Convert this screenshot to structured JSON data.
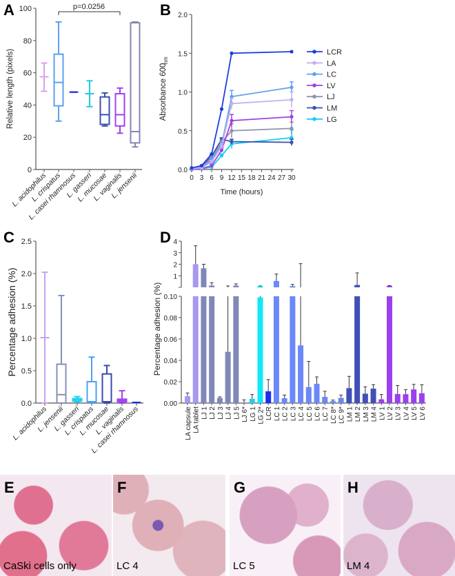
{
  "chart_data": [
    {
      "panel": "A",
      "type": "box",
      "ylabel": "Relative length (pixels)",
      "ylim": [
        0,
        100
      ],
      "yticks": [
        "0",
        "20",
        "40",
        "60",
        "80",
        "100"
      ],
      "categories": [
        "L. acidophilus",
        "L. crispatus",
        "L. casei rhamnosus",
        "L. gasseri",
        "L. mucosae",
        "L. vaginalis",
        "L. jensenii"
      ],
      "colors": [
        "#d9a0f0",
        "#5aa0f0",
        "#1a2fe0",
        "#20c8e0",
        "#3a4fb0",
        "#a040f0",
        "#8484b4"
      ],
      "boxes": [
        {
          "min": 48.5,
          "q1": 57.5,
          "median": 57.5,
          "q3": 57.5,
          "max": 66
        },
        {
          "min": 30,
          "q1": 39.5,
          "median": 54,
          "q3": 71.5,
          "max": 91.5
        },
        {
          "min": 48,
          "q1": 48,
          "median": 48,
          "q3": 48,
          "max": 48
        },
        {
          "min": 39,
          "q1": 47,
          "median": 47,
          "q3": 47,
          "max": 55
        },
        {
          "min": 27,
          "q1": 28,
          "median": 34,
          "q3": 45,
          "max": 47.5
        },
        {
          "min": 22.5,
          "q1": 27,
          "median": 34,
          "q3": 47,
          "max": 50.5
        },
        {
          "min": 14,
          "q1": 16.5,
          "median": 23.5,
          "q3": 91,
          "max": 91.5
        }
      ],
      "annotation": {
        "text": "p=0.0256",
        "from": "L. crispatus",
        "to": "L. vaginalis"
      }
    },
    {
      "panel": "B",
      "type": "line",
      "xlabel": "Time (hours)",
      "ylabel": "Absorbance 600",
      "ylabel_sub": "nm",
      "xlim": [
        0,
        30
      ],
      "ylim": [
        0,
        2.0
      ],
      "xticks": [
        "0",
        "3",
        "6",
        "9",
        "12",
        "15",
        "18",
        "21",
        "24",
        "27",
        "30"
      ],
      "yticks": [
        "0.0",
        "0.5",
        "1.0",
        "1.5",
        "2.0"
      ],
      "x": [
        0,
        3,
        6,
        9,
        12,
        30
      ],
      "legend_position": "right",
      "series": [
        {
          "name": "LCR",
          "color": "#1a3fe0",
          "values": [
            0.02,
            0.05,
            0.2,
            0.78,
            1.5,
            1.52
          ],
          "err": [
            0,
            0,
            0,
            0,
            0.01,
            0.01
          ]
        },
        {
          "name": "LA",
          "color": "#c0b0f0",
          "values": [
            0.01,
            0.02,
            0.1,
            0.3,
            0.85,
            0.9
          ],
          "err": [
            0,
            0,
            0.02,
            0.03,
            0.07,
            0.1
          ]
        },
        {
          "name": "LC",
          "color": "#60a0f0",
          "values": [
            0.01,
            0.02,
            0.12,
            0.32,
            0.94,
            1.06
          ],
          "err": [
            0,
            0,
            0.02,
            0.03,
            0.08,
            0.07
          ]
        },
        {
          "name": "LV",
          "color": "#a040e0",
          "values": [
            0,
            0.01,
            0.05,
            0.25,
            0.63,
            0.68
          ],
          "err": [
            0,
            0,
            0.02,
            0.03,
            0.08,
            0.08
          ]
        },
        {
          "name": "LJ",
          "color": "#9090b0",
          "values": [
            0.01,
            0.03,
            0.15,
            0.35,
            0.5,
            0.53
          ],
          "err": [
            0,
            0,
            0.02,
            0.03,
            0.09,
            0.08
          ]
        },
        {
          "name": "LM",
          "color": "#3a50b0",
          "values": [
            0.01,
            0.03,
            0.17,
            0.39,
            0.36,
            0.35
          ],
          "err": [
            0,
            0,
            0.02,
            0.02,
            0.03,
            0.04
          ]
        },
        {
          "name": "LG",
          "color": "#10d0f0",
          "values": [
            0,
            0.01,
            0.03,
            0.18,
            0.33,
            0.41
          ],
          "err": [
            0,
            0,
            0.01,
            0.02,
            0.06,
            0.1
          ]
        }
      ]
    },
    {
      "panel": "C",
      "type": "box",
      "ylabel": "Percentage adhesion (%)",
      "ylim": [
        0,
        2.5
      ],
      "yticks": [
        "0.0",
        "0.5",
        "1.0",
        "1.5",
        "2.0",
        "2.5"
      ],
      "categories": [
        "L. acidophilus",
        "L. jensenii",
        "L. gasseri",
        "L. crispatus",
        "L. mucosae",
        "L. vaginalis",
        "L. casei rhamnosus"
      ],
      "colors": [
        "#c8a0f0",
        "#8490b8",
        "#20d0f0",
        "#4aa0f0",
        "#3a48b0",
        "#a040f0",
        "#1a2fe0"
      ],
      "boxes": [
        {
          "min": 0,
          "q1": 1.01,
          "median": 1.01,
          "q3": 1.01,
          "max": 2.02
        },
        {
          "min": 0,
          "q1": 0,
          "median": 0.13,
          "q3": 0.6,
          "max": 1.66
        },
        {
          "min": 0.02,
          "q1": 0.03,
          "median": 0.05,
          "q3": 0.07,
          "max": 0.1
        },
        {
          "min": 0,
          "q1": 0.02,
          "median": 0.02,
          "q3": 0.33,
          "max": 0.71
        },
        {
          "min": 0,
          "q1": 0.02,
          "median": 0.02,
          "q3": 0.45,
          "max": 0.58
        },
        {
          "min": 0,
          "q1": 0.02,
          "median": 0.04,
          "q3": 0.06,
          "max": 0.19
        },
        {
          "min": 0.01,
          "q1": 0.01,
          "median": 0.01,
          "q3": 0.01,
          "max": 0.01
        }
      ]
    },
    {
      "panel": "D",
      "type": "bar",
      "ylabel": "Percentage adhesion (%)",
      "axis_break": true,
      "lower_ylim": [
        0,
        0.1
      ],
      "upper_ylim": [
        0,
        4
      ],
      "lower_yticks": [
        "0.00",
        "0.02",
        "0.04",
        "0.06",
        "0.08",
        "0.10"
      ],
      "upper_yticks": [
        "1",
        "2",
        "3",
        "4"
      ],
      "categories": [
        "LA capsule",
        "LA tablet",
        "LJ 1",
        "LJ 2",
        "LJ 3",
        "LJ 4",
        "LJ 5",
        "LJ 6*",
        "LG 1",
        "LG 2*",
        "LCR",
        "LC 1",
        "LC 2",
        "LC 3",
        "LC 4",
        "LC 5",
        "LC 6",
        "LC 7",
        "LC 8*",
        "LC 9*",
        "LM 1",
        "LM 2",
        "LM 3",
        "LM 4",
        "LV 1",
        "LV 2",
        "LV 3",
        "LV 4",
        "LV 5",
        "LV 6"
      ],
      "values": [
        0.0065,
        2.0,
        1.65,
        0.15,
        0.0048,
        0.048,
        0.15,
        0.0005,
        0.004,
        0.099,
        0.011,
        0.55,
        0.0045,
        0.1,
        0.054,
        0.015,
        0.018,
        0.0058,
        0.0018,
        0.0048,
        0.014,
        0.2,
        0.0088,
        0.0135,
        0.0035,
        0.12,
        0.0085,
        0.0083,
        0.0128,
        0.0092
      ],
      "err_top": [
        0.0095,
        3.6,
        2.0,
        0.4,
        0.0058,
        0.12,
        0.3,
        0.003,
        0.008,
        0.12,
        0.022,
        1.15,
        0.0075,
        0.25,
        2.05,
        0.039,
        0.0245,
        0.011,
        0.0028,
        0.0075,
        0.025,
        1.25,
        0.0152,
        0.0172,
        0.008,
        0.15,
        0.0165,
        0.0125,
        0.0175,
        0.0171
      ],
      "colors": [
        "#a898f0",
        "#a898f0",
        "#7f88b8",
        "#7f88b8",
        "#7f88b8",
        "#7f88b8",
        "#7f88b8",
        "#7f88b8",
        "#20d0f0",
        "#10e8f8",
        "#1a30f0",
        "#6b88f8",
        "#6b88f8",
        "#6b88f8",
        "#6b88f8",
        "#6b88f8",
        "#6b88f8",
        "#6b88f8",
        "#6b88f8",
        "#6b88f8",
        "#4050b8",
        "#4050b8",
        "#4050b8",
        "#4050b8",
        "#9a40f0",
        "#9a40f0",
        "#9a40f0",
        "#9a40f0",
        "#9a40f0",
        "#9a40f0"
      ]
    }
  ],
  "panels": {
    "A": "A",
    "B": "B",
    "C": "C",
    "D": "D"
  },
  "photos": [
    {
      "letter": "E",
      "caption": "CaSki cells only"
    },
    {
      "letter": "F",
      "caption": "LC 4"
    },
    {
      "letter": "G",
      "caption": "LC 5"
    },
    {
      "letter": "H",
      "caption": "LM 4"
    }
  ]
}
